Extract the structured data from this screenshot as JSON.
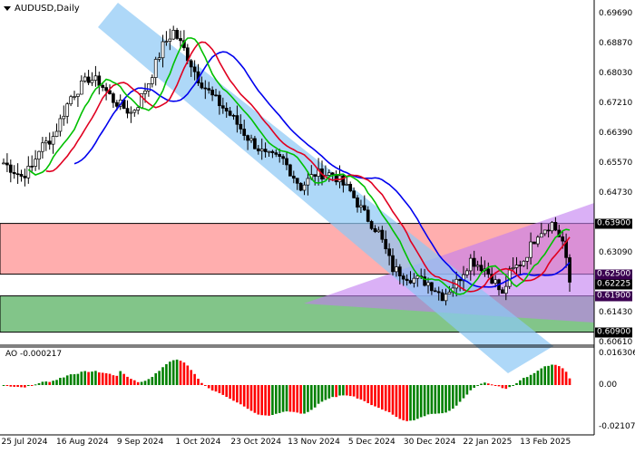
{
  "header": {
    "symbol_label": "AUDUSD,Daily"
  },
  "indicator": {
    "label": "AO -0.000217"
  },
  "price_axis": [
    "0.69690",
    "0.68870",
    "0.68030",
    "0.67210",
    "0.66390",
    "0.65570",
    "0.64730",
    "0.63090",
    "0.61430",
    "0.60610"
  ],
  "price_tags": [
    {
      "value": "0.63900",
      "color": "#000000"
    },
    {
      "value": "0.62500",
      "color": "#3a0050"
    },
    {
      "value": "0.62225",
      "color": "#000000"
    },
    {
      "value": "0.61900",
      "color": "#3a0050"
    },
    {
      "value": "0.60900",
      "color": "#000000"
    }
  ],
  "indicator_axis": [
    "0.016306",
    "0.00",
    "-0.021075"
  ],
  "date_axis": [
    "25 Jul 2024",
    "16 Aug 2024",
    "9 Sep 2024",
    "1 Oct 2024",
    "23 Oct 2024",
    "13 Nov 2024",
    "5 Dec 2024",
    "30 Dec 2024",
    "22 Jan 2025",
    "13 Feb 2025"
  ],
  "zones": {
    "resistance": {
      "from": 0.639,
      "to": 0.625,
      "color": "#ff6b6b"
    },
    "support": {
      "from": 0.619,
      "to": 0.609,
      "color": "#2e9e3a"
    }
  },
  "colors": {
    "ma_fast": "#00c000",
    "ma_mid": "#e00020",
    "ma_slow": "#0000ee",
    "channel": "#8cc8f5",
    "triangle": "#c27cf0",
    "ao_up": "#008000",
    "ao_down": "#ff0000"
  },
  "price_keypoints": [
    [
      0,
      0.6557
    ],
    [
      5,
      0.652
    ],
    [
      8,
      0.6545
    ],
    [
      10,
      0.6595
    ],
    [
      14,
      0.663
    ],
    [
      19,
      0.674
    ],
    [
      24,
      0.679
    ],
    [
      27,
      0.678
    ],
    [
      31,
      0.673
    ],
    [
      36,
      0.6695
    ],
    [
      38,
      0.672
    ],
    [
      41,
      0.678
    ],
    [
      45,
      0.688
    ],
    [
      48,
      0.692
    ],
    [
      51,
      0.687
    ],
    [
      55,
      0.679
    ],
    [
      59,
      0.674
    ],
    [
      64,
      0.669
    ],
    [
      69,
      0.6627
    ],
    [
      74,
      0.6577
    ],
    [
      79,
      0.6565
    ],
    [
      84,
      0.649
    ],
    [
      88,
      0.6527
    ],
    [
      93,
      0.6527
    ],
    [
      98,
      0.6477
    ],
    [
      102,
      0.6415
    ],
    [
      106,
      0.6365
    ],
    [
      110,
      0.6265
    ],
    [
      115,
      0.624
    ],
    [
      120,
      0.6227
    ],
    [
      124,
      0.619
    ],
    [
      128,
      0.6227
    ],
    [
      132,
      0.629
    ],
    [
      136,
      0.6265
    ],
    [
      139,
      0.6227
    ],
    [
      141,
      0.619
    ],
    [
      143,
      0.6252
    ],
    [
      147,
      0.629
    ],
    [
      151,
      0.6365
    ],
    [
      155,
      0.639
    ],
    [
      158,
      0.634
    ],
    [
      160,
      0.6227
    ]
  ]
}
